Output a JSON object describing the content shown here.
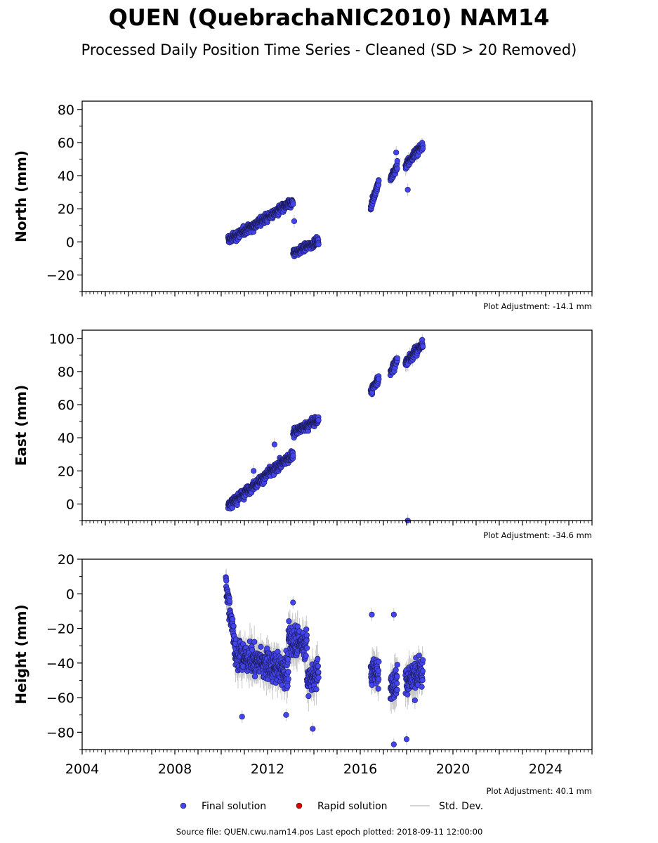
{
  "chart_data": {
    "type": "scatter",
    "title": "QUEN (QuebrachaNIC2010) NAM14",
    "subtitle": "Processed Daily Position Time Series - Cleaned (SD > 20 Removed)",
    "xlim": [
      2004,
      2026
    ],
    "x_ticks": [
      "2004",
      "2008",
      "2012",
      "2016",
      "2020",
      "2024"
    ],
    "x_tick_values": [
      2004,
      2008,
      2012,
      2016,
      2020,
      2024
    ],
    "series_names": [
      "Final solution",
      "Rapid solution",
      "Std. Dev."
    ],
    "colors": {
      "final": "#4444ee",
      "rapid": "#dd0000",
      "stddev": "#c8c8c8"
    },
    "footer": "Source file: QUEN.cwu.nam14.pos  Last epoch plotted: 2018-09-11 12:00:00",
    "panels": [
      {
        "ylabel": "North (mm)",
        "ylim": [
          -30,
          85
        ],
        "y_ticks": [
          "−20",
          "0",
          "20",
          "40",
          "60",
          "80"
        ],
        "y_tick_values": [
          -20,
          0,
          20,
          40,
          60,
          80
        ],
        "adjustment": "Plot Adjustment: -14.1 mm",
        "trend": [
          [
            2010.3,
            2013.1,
            1.0,
            24.0,
            3.0,
            0.8
          ],
          [
            2013.1,
            2014.2,
            -7.0,
            0.5,
            2.5,
            0.8
          ],
          [
            2016.45,
            2016.8,
            21.0,
            37.0,
            2.5,
            1.5
          ],
          [
            2017.3,
            2017.6,
            38.0,
            46.0,
            3.0,
            2.0
          ],
          [
            2017.95,
            2018.7,
            46.0,
            59.0,
            3.0,
            2.5
          ]
        ],
        "outliers": [
          [
            2013.15,
            12.5
          ],
          [
            2018.05,
            31.5
          ],
          [
            2017.55,
            54.0
          ]
        ]
      },
      {
        "ylabel": "East (mm)",
        "ylim": [
          -10,
          105
        ],
        "y_ticks": [
          "0",
          "20",
          "40",
          "60",
          "80",
          "100"
        ],
        "y_tick_values": [
          0,
          20,
          40,
          60,
          80,
          100
        ],
        "adjustment": "Plot Adjustment: -34.6 mm",
        "trend": [
          [
            2010.3,
            2013.1,
            -1.0,
            30.0,
            3.0,
            0.8
          ],
          [
            2013.1,
            2014.2,
            43.0,
            51.0,
            3.0,
            0.8
          ],
          [
            2016.45,
            2016.8,
            68.0,
            76.0,
            3.0,
            1.5
          ],
          [
            2017.3,
            2017.6,
            80.0,
            87.0,
            3.0,
            2.0
          ],
          [
            2017.95,
            2018.7,
            85.0,
            97.0,
            3.0,
            2.5
          ]
        ],
        "outliers": [
          [
            2018.05,
            -10.0
          ],
          [
            2011.4,
            20.0
          ],
          [
            2012.3,
            36.0
          ]
        ]
      },
      {
        "ylabel": "Height (mm)",
        "ylim": [
          -90,
          20
        ],
        "y_ticks": [
          "−80",
          "−60",
          "−40",
          "−20",
          "0",
          "20"
        ],
        "y_tick_values": [
          -80,
          -60,
          -40,
          -20,
          0,
          20
        ],
        "adjustment": "Plot Adjustment: 40.1 mm",
        "trend": [
          [
            2010.2,
            2010.6,
            6.0,
            -30.0,
            7.0,
            5.0
          ],
          [
            2010.6,
            2012.9,
            -35.0,
            -45.0,
            9.0,
            6.0
          ],
          [
            2012.9,
            2013.7,
            -25.0,
            -30.0,
            10.0,
            6.0
          ],
          [
            2013.7,
            2014.2,
            -50.0,
            -45.0,
            9.0,
            6.0
          ],
          [
            2016.45,
            2016.8,
            -45.0,
            -45.0,
            8.0,
            6.0
          ],
          [
            2017.3,
            2017.6,
            -55.0,
            -50.0,
            12.0,
            6.0
          ],
          [
            2017.95,
            2018.7,
            -50.0,
            -45.0,
            10.0,
            6.0
          ]
        ],
        "outliers": [
          [
            2010.9,
            -71.0
          ],
          [
            2013.1,
            -5.0
          ],
          [
            2016.5,
            -12.0
          ],
          [
            2017.45,
            -12.0
          ],
          [
            2018.0,
            -84.0
          ],
          [
            2017.45,
            -87.0
          ],
          [
            2012.8,
            -70.0
          ],
          [
            2013.95,
            -78.0
          ]
        ]
      }
    ]
  }
}
